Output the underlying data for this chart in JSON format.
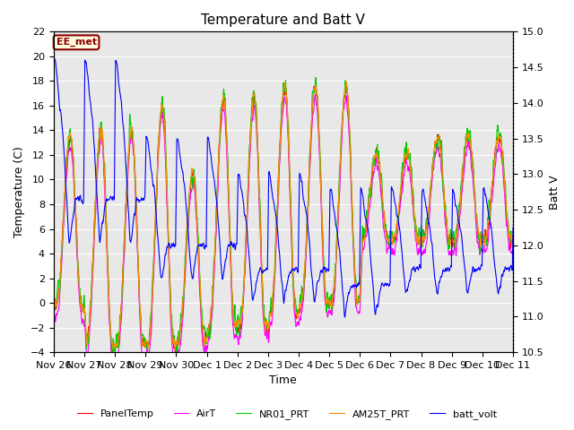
{
  "title": "Temperature and Batt V",
  "xlabel": "Time",
  "ylabel_left": "Temperature (C)",
  "ylabel_right": "Batt V",
  "ylim_left": [
    -4,
    22
  ],
  "ylim_right": [
    10.5,
    15.0
  ],
  "yticks_left": [
    -4,
    -2,
    0,
    2,
    4,
    6,
    8,
    10,
    12,
    14,
    16,
    18,
    20,
    22
  ],
  "yticks_right": [
    10.5,
    11.0,
    11.5,
    12.0,
    12.5,
    13.0,
    13.5,
    14.0,
    14.5,
    15.0
  ],
  "annotation_text": "EE_met",
  "annotation_color": "#8B0000",
  "background_color": "#E8E8E8",
  "grid_color": "white",
  "legend_entries": [
    "PanelTemp",
    "AirT",
    "NR01_PRT",
    "AM25T_PRT",
    "batt_volt"
  ],
  "legend_colors": [
    "#FF0000",
    "#FF00FF",
    "#00CC00",
    "#FF8C00",
    "#0000FF"
  ],
  "x_tick_labels": [
    "Nov 26",
    "Nov 27",
    "Nov 28",
    "Nov 29",
    "Nov 30",
    "Dec 1",
    "Dec 2",
    "Dec 3",
    "Dec 4",
    "Dec 5",
    "Dec 6",
    "Dec 7",
    "Dec 8",
    "Dec 9",
    "Dec 10",
    "Dec 11"
  ]
}
